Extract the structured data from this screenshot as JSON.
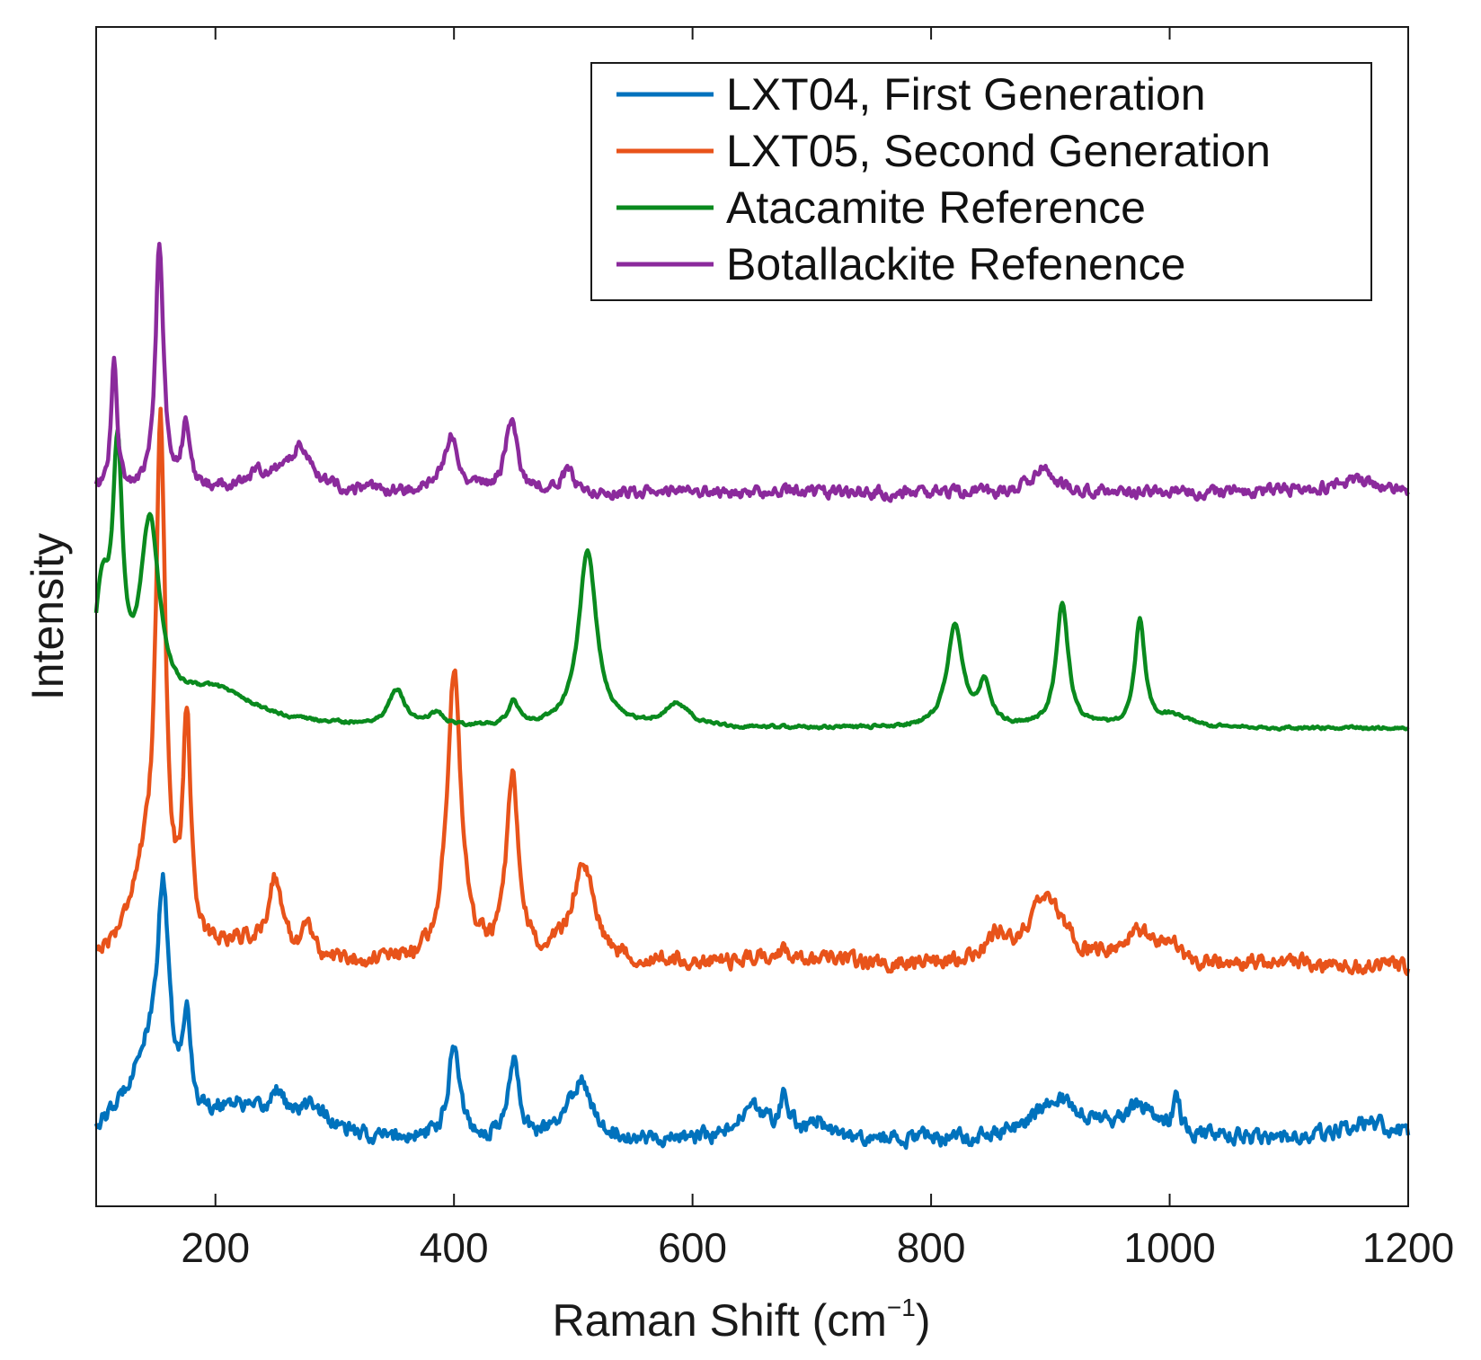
{
  "chart_data": {
    "type": "line",
    "title": "",
    "xlabel": "Raman Shift",
    "xlabel_unit_base": "(cm",
    "xlabel_unit_exp": "−1",
    "xlabel_unit_close": ")",
    "ylabel": "Intensity",
    "xlim": [
      100,
      1200
    ],
    "xticks": [
      200,
      400,
      600,
      800,
      1000,
      1200
    ],
    "y_ticks_shown": false,
    "grid": false,
    "legend_position": "top-right",
    "y_note": "Stacked spectra in arbitrary intensity units (0 = bottom of axes, 100 = top of axes).",
    "series": [
      {
        "name": "LXT04, First Generation",
        "color": "#0072BD",
        "baseline": 5.5,
        "noise": 0.6,
        "peaks": [
          {
            "x": 156,
            "h": 18,
            "w": 6
          },
          {
            "x": 140,
            "h": 6,
            "w": 20
          },
          {
            "x": 176,
            "h": 8,
            "w": 4
          },
          {
            "x": 215,
            "h": 2.5,
            "w": 25
          },
          {
            "x": 252,
            "h": 3,
            "w": 8
          },
          {
            "x": 282,
            "h": 2.5,
            "w": 15
          },
          {
            "x": 400,
            "h": 8,
            "w": 6
          },
          {
            "x": 450,
            "h": 7,
            "w": 5
          },
          {
            "x": 506,
            "h": 5,
            "w": 12
          },
          {
            "x": 650,
            "h": 2.5,
            "w": 15
          },
          {
            "x": 677,
            "h": 3,
            "w": 6
          },
          {
            "x": 705,
            "h": 1.5,
            "w": 8
          },
          {
            "x": 906,
            "h": 3.5,
            "w": 25
          },
          {
            "x": 975,
            "h": 2.5,
            "w": 20
          },
          {
            "x": 1006,
            "h": 3.5,
            "w": 3
          },
          {
            "x": 1165,
            "h": 1.5,
            "w": 30
          }
        ]
      },
      {
        "name": "LXT05, Second Generation",
        "color": "#E8531A",
        "baseline": 20.5,
        "noise": 0.6,
        "peaks": [
          {
            "x": 154,
            "h": 43,
            "w": 5
          },
          {
            "x": 138,
            "h": 6,
            "w": 15
          },
          {
            "x": 176,
            "h": 19,
            "w": 4
          },
          {
            "x": 220,
            "h": 1.5,
            "w": 25
          },
          {
            "x": 250,
            "h": 6.5,
            "w": 7
          },
          {
            "x": 277,
            "h": 3,
            "w": 5
          },
          {
            "x": 400,
            "h": 25,
            "w": 7
          },
          {
            "x": 449,
            "h": 15,
            "w": 6
          },
          {
            "x": 508,
            "h": 8,
            "w": 12
          },
          {
            "x": 672,
            "h": 1,
            "w": 20
          },
          {
            "x": 855,
            "h": 2,
            "w": 10
          },
          {
            "x": 897,
            "h": 5.5,
            "w": 18
          },
          {
            "x": 975,
            "h": 2.5,
            "w": 15
          },
          {
            "x": 1002,
            "h": 1.5,
            "w": 5
          }
        ]
      },
      {
        "name": "Atacamite Reference",
        "color": "#0A8A1E",
        "baseline": 40.5,
        "noise": 0.12,
        "peaks": [
          {
            "x": 118,
            "h": 20,
            "w": 5
          },
          {
            "x": 145,
            "h": 16,
            "w": 10
          },
          {
            "x": 105,
            "h": 10,
            "w": 8
          },
          {
            "x": 200,
            "h": 3,
            "w": 40
          },
          {
            "x": 352,
            "h": 3,
            "w": 8
          },
          {
            "x": 385,
            "h": 1,
            "w": 8
          },
          {
            "x": 450,
            "h": 2,
            "w": 5
          },
          {
            "x": 512,
            "h": 15,
            "w": 9
          },
          {
            "x": 587,
            "h": 2,
            "w": 12
          },
          {
            "x": 820,
            "h": 8.5,
            "w": 8
          },
          {
            "x": 845,
            "h": 3.5,
            "w": 6
          },
          {
            "x": 910,
            "h": 10.5,
            "w": 6
          },
          {
            "x": 975,
            "h": 9,
            "w": 5
          },
          {
            "x": 1003,
            "h": 1,
            "w": 15
          }
        ]
      },
      {
        "name": "Botallackite Refenence",
        "color": "#8B2A9C",
        "baseline": 60.5,
        "noise": 0.45,
        "peaks": [
          {
            "x": 115,
            "h": 11,
            "w": 3
          },
          {
            "x": 153,
            "h": 21,
            "w": 4
          },
          {
            "x": 175,
            "h": 5,
            "w": 4
          },
          {
            "x": 240,
            "h": 1.5,
            "w": 20
          },
          {
            "x": 272,
            "h": 3.5,
            "w": 12
          },
          {
            "x": 398,
            "h": 5,
            "w": 7
          },
          {
            "x": 448,
            "h": 6,
            "w": 6
          },
          {
            "x": 495,
            "h": 1.5,
            "w": 8
          },
          {
            "x": 893,
            "h": 2,
            "w": 12
          },
          {
            "x": 1155,
            "h": 1,
            "w": 30
          }
        ]
      }
    ]
  }
}
